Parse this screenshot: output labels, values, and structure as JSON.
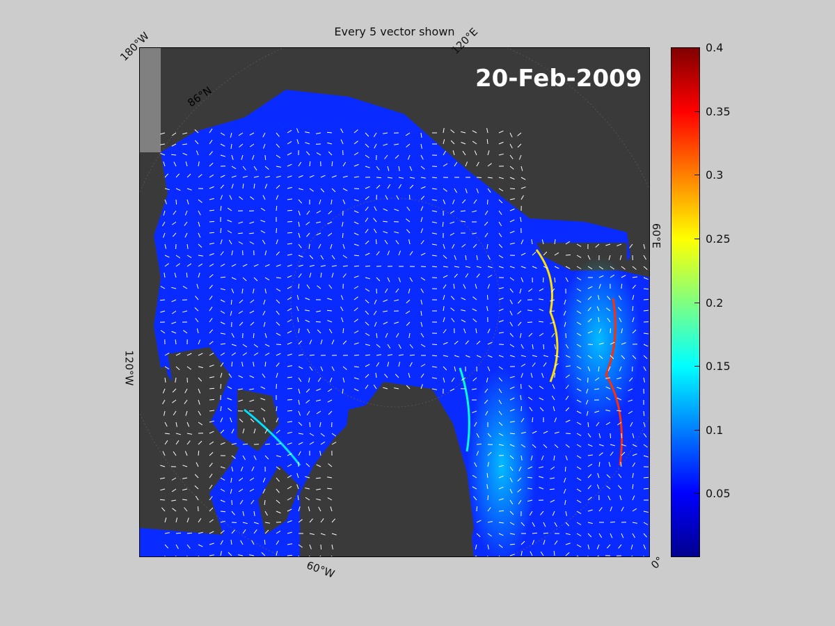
{
  "title": "Every 5 vector shown",
  "date": "20-Feb-2009",
  "map_labels": {
    "lon_180W": "180°W",
    "lon_120E": "120°E",
    "lon_60E": "60°E",
    "lon_120W": "120°W",
    "lon_60W": "60°W",
    "lon_0": "0°",
    "lat_86N": "86°N"
  },
  "colorbar": {
    "colormap": "jet",
    "min": 0,
    "max": 0.4,
    "ticks": [
      "0.4",
      "0.35",
      "0.3",
      "0.25",
      "0.2",
      "0.15",
      "0.1",
      "0.05"
    ]
  },
  "colors": {
    "background": "#cccccc",
    "land": "#3a3a3a",
    "ice_low": "#0a2bff",
    "ice_high": "#ff0000",
    "vectors": "#ffffff"
  }
}
